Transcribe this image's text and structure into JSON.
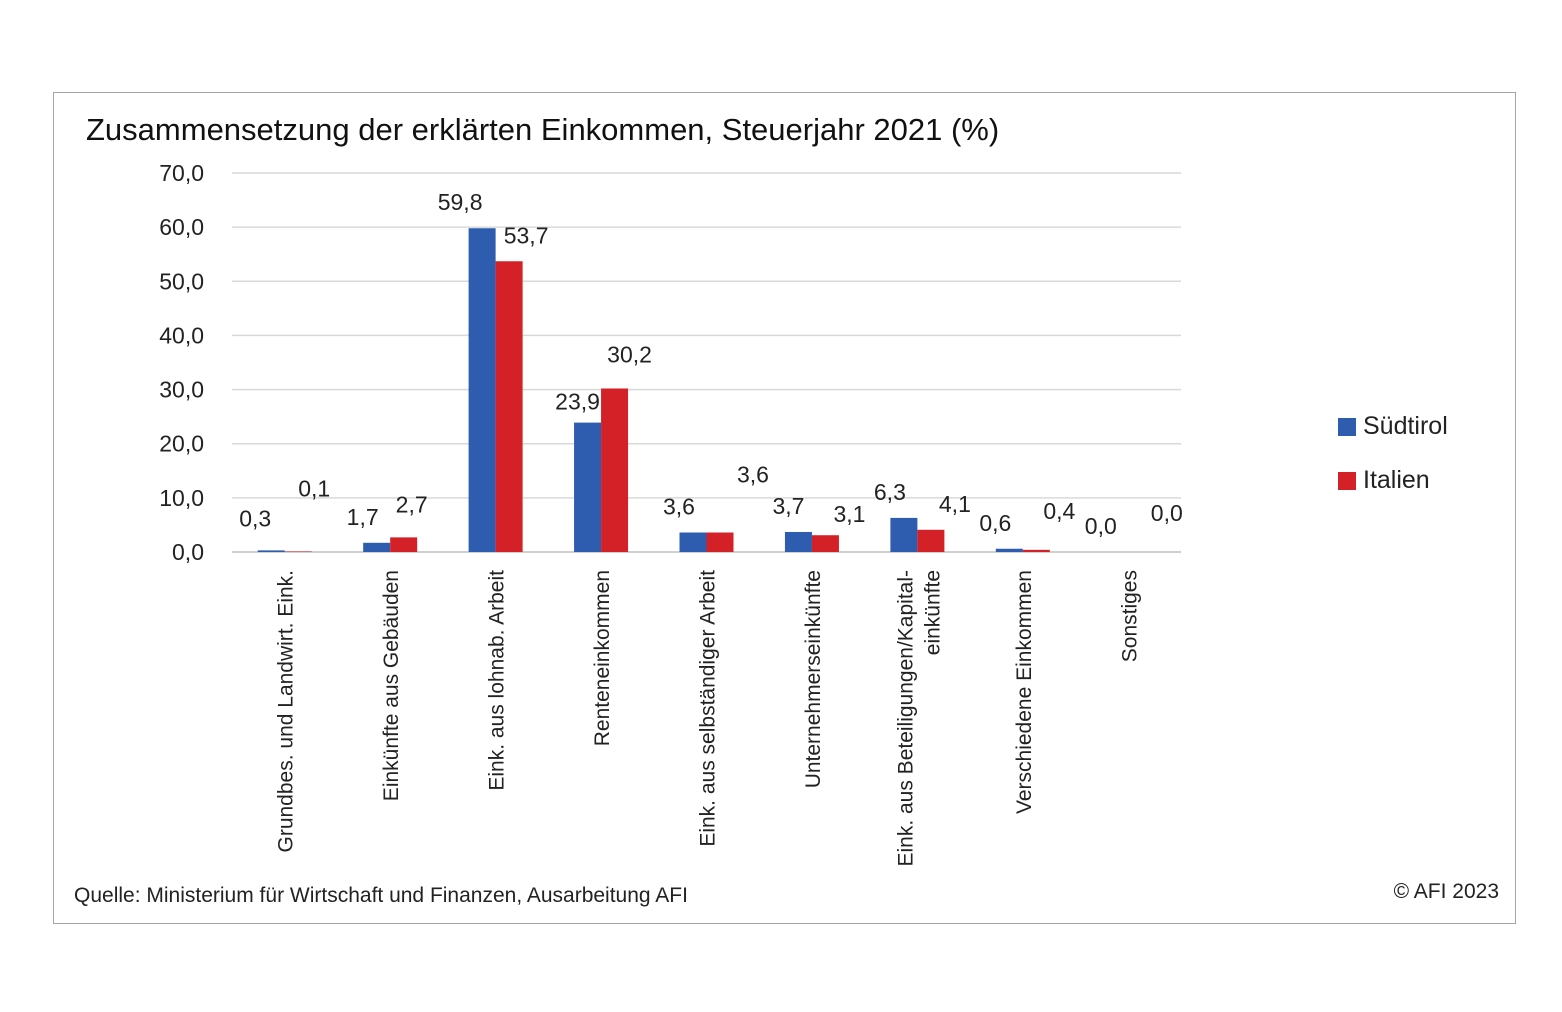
{
  "colors": {
    "suedtirol": "#2e5db0",
    "italien": "#d42128",
    "grid": "#d9d9d9",
    "axis": "#bfbfbf"
  },
  "chart_data": {
    "type": "bar",
    "title": "Zusammensetzung der erklärten Einkommen, Steuerjahr 2021 (%)",
    "categories": [
      [
        "Grundbes. und Landwirt. Eink."
      ],
      [
        "Einkünfte aus Gebäuden"
      ],
      [
        "Eink. aus lohnab. Arbeit"
      ],
      [
        "Renteneinkommen"
      ],
      [
        "Eink. aus selbständiger Arbeit"
      ],
      [
        "Unternehmerseinkünfte"
      ],
      [
        "Eink. aus Beteiligungen/Kapital-",
        "einkünfte"
      ],
      [
        "Verschiedene Einkommen"
      ],
      [
        "Sonstiges"
      ]
    ],
    "series": [
      {
        "name": "Südtirol",
        "values": [
          0.3,
          1.7,
          59.8,
          23.9,
          3.6,
          3.7,
          6.3,
          0.6,
          0.0
        ],
        "labels": [
          "0,3",
          "1,7",
          "59,8",
          "23,9",
          "3,6",
          "3,7",
          "6,3",
          "0,6",
          "0,0"
        ]
      },
      {
        "name": "Italien",
        "values": [
          0.1,
          2.7,
          53.7,
          30.2,
          3.6,
          3.1,
          4.1,
          0.4,
          0.0
        ],
        "labels": [
          "0,1",
          "2,7",
          "53,7",
          "30,2",
          "3,6",
          "3,1",
          "4,1",
          "0,4",
          "0,0"
        ]
      }
    ],
    "ylim": [
      0,
      70
    ],
    "yticks": [
      "0,0",
      "10,0",
      "20,0",
      "30,0",
      "40,0",
      "50,0",
      "60,0",
      "70,0"
    ],
    "grid": true,
    "legend": "right"
  },
  "footer": {
    "source": "Quelle: Ministerium für Wirtschaft und Finanzen, Ausarbeitung AFI",
    "copyright": "© AFI 2023"
  }
}
